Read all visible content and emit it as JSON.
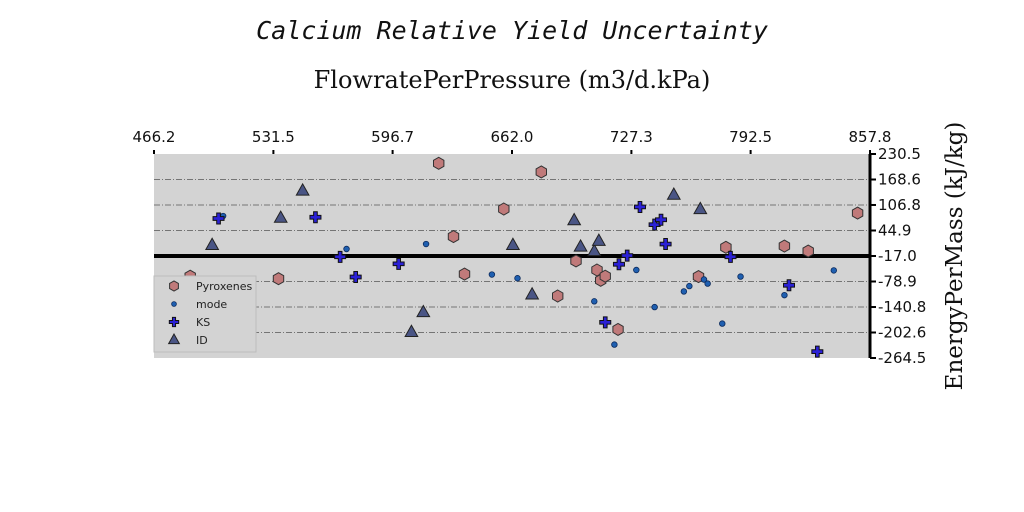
{
  "chart_data": {
    "type": "scatter",
    "title": "Calcium Relative Yield Uncertainty",
    "xlabel": "FlowratePerPressure (m3/d.kPa)",
    "ylabel": "EnergyPerMass (kJ/kg)",
    "xlim": [
      466.2,
      857.8
    ],
    "ylim": [
      -264.5,
      230.5
    ],
    "x_ticks": [
      "466.2",
      "531.5",
      "596.7",
      "662.0",
      "727.3",
      "792.5",
      "857.8"
    ],
    "y_ticks": [
      "230.5",
      "168.6",
      "106.8",
      "44.9",
      "-17.0",
      "-78.9",
      "-140.8",
      "-202.6",
      "-264.5"
    ],
    "reference_line_y": -17.0,
    "legend_position": "lower-left",
    "colors": {
      "background": "#d3d3d3",
      "Pyroxenes": "#c07a7a",
      "mode": "#1f5fb0",
      "KS": "#2b21d6",
      "ID": "#4a5585"
    },
    "series": [
      {
        "name": "Pyroxenes",
        "marker": "hexagon",
        "x": [
          486.0,
          534.3,
          621.9,
          630.0,
          636.0,
          657.5,
          678.0,
          687.0,
          697.0,
          708.5,
          710.5,
          713.0,
          720.0,
          764.0,
          779.0,
          811.0,
          824.0,
          851.0
        ],
        "y": [
          -66.0,
          -72.0,
          208.0,
          30.0,
          -61.0,
          97.0,
          187.0,
          -114.0,
          -29.0,
          -51.0,
          -76.0,
          -66.0,
          -195.0,
          -67.0,
          4.0,
          7.0,
          -5.0,
          87.0
        ]
      },
      {
        "name": "mode",
        "marker": "circle",
        "x": [
          486.0,
          504.0,
          571.5,
          615.0,
          651.0,
          665.0,
          707.0,
          718.0,
          730.0,
          740.0,
          756.0,
          759.0,
          767.0,
          769.0,
          777.0,
          787.0,
          811.0,
          838.0
        ],
        "y": [
          -113.0,
          80.0,
          0.0,
          12.0,
          -62.0,
          -71.0,
          -127.0,
          -232.0,
          -51.0,
          -141.0,
          -103.0,
          -90.0,
          -74.0,
          -84.0,
          -181.0,
          -67.0,
          -112.0,
          -52.0
        ],
        "note": "approximate values; some points share positions with other series"
      },
      {
        "name": "KS",
        "marker": "plus",
        "x": [
          484.0,
          501.5,
          554.5,
          568.0,
          576.5,
          600.0,
          713.0,
          720.5,
          725.0,
          732.0,
          740.0,
          743.5,
          746.0,
          781.5,
          813.5,
          829.0
        ],
        "y": [
          -99.0,
          74.0,
          77.0,
          -19.0,
          -68.0,
          -36.0,
          -178.0,
          -37.0,
          -16.0,
          102.0,
          59.0,
          71.0,
          12.0,
          -19.0,
          -88.0,
          -249.0
        ]
      },
      {
        "name": "ID",
        "marker": "triangle",
        "x": [
          482.0,
          498.0,
          535.5,
          547.5,
          607.0,
          613.5,
          662.5,
          673.0,
          696.0,
          699.5,
          707.0,
          709.5,
          750.5,
          765.0
        ],
        "y": [
          -119.0,
          9.0,
          75.0,
          141.0,
          -202.0,
          -154.0,
          9.0,
          -111.0,
          69.0,
          5.0,
          -6.0,
          19.0,
          131.0,
          96.0
        ]
      }
    ]
  }
}
